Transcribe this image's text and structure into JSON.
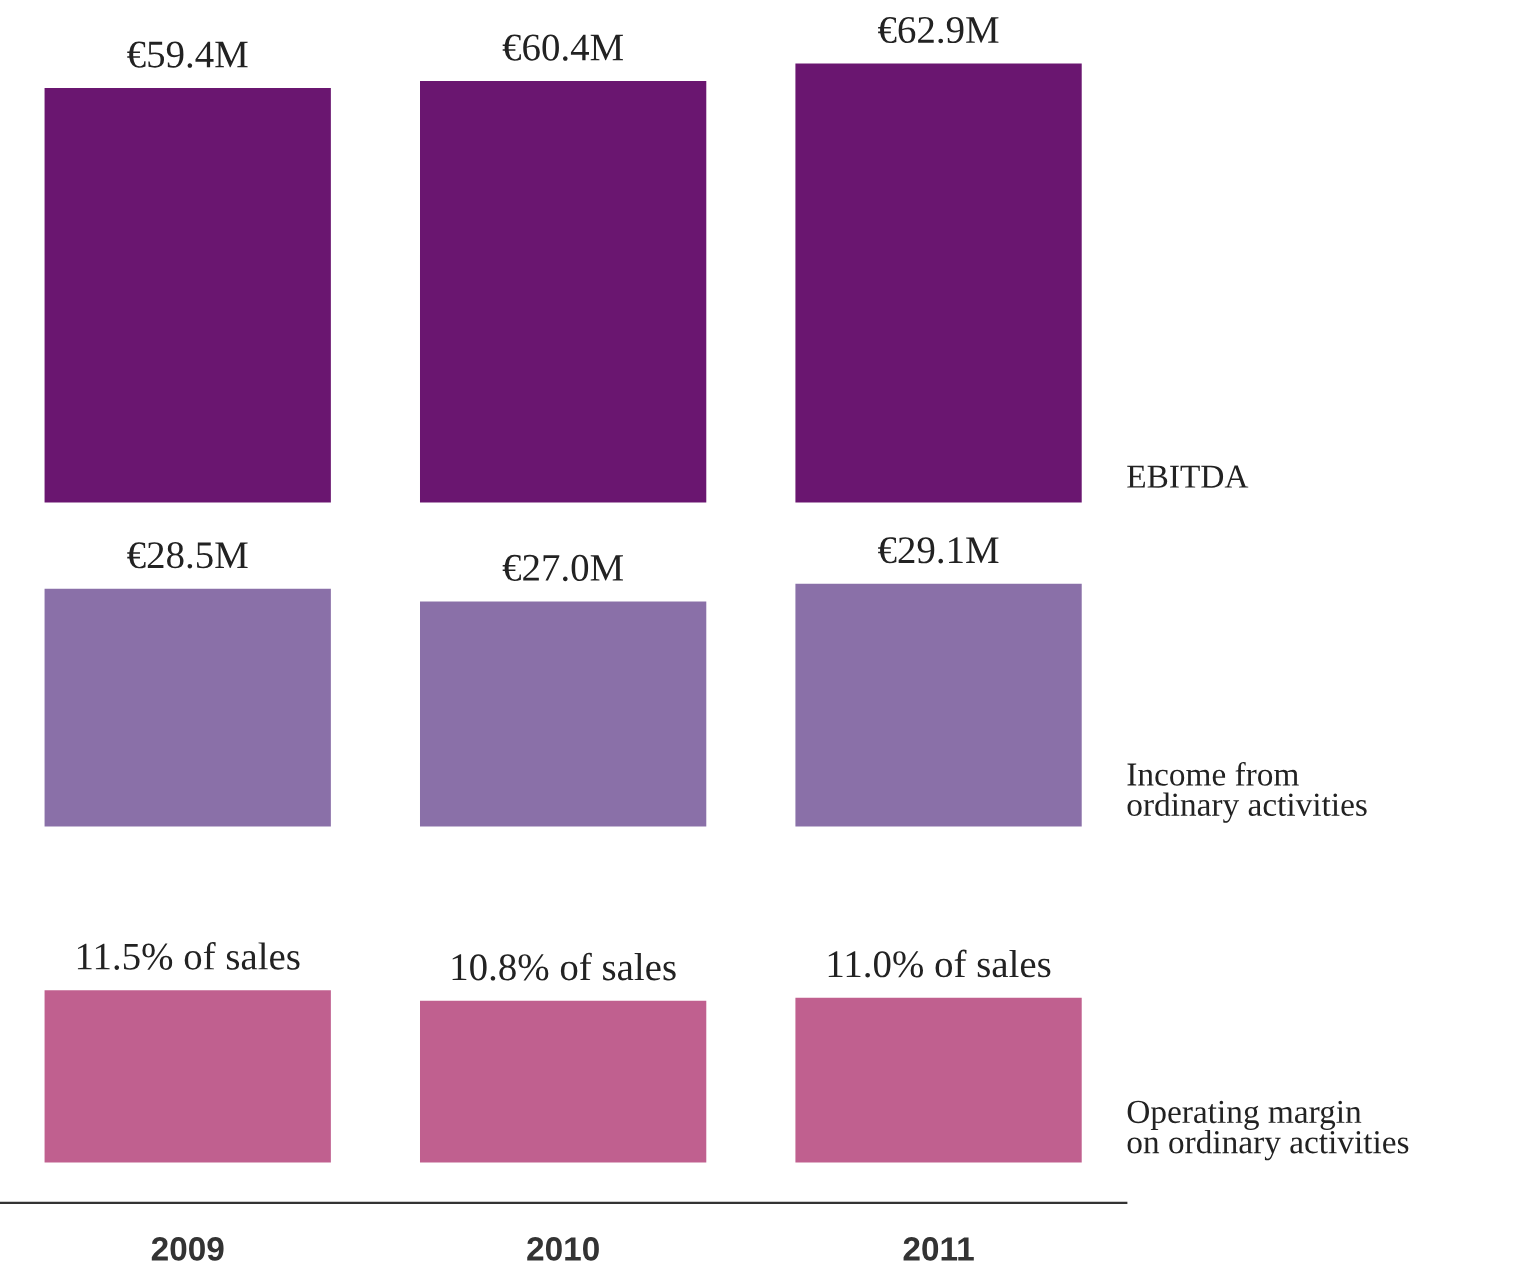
{
  "chart_data": [
    {
      "type": "bar",
      "categories": [
        "2009",
        "2010",
        "2011"
      ],
      "tick_labels": false,
      "series": [
        {
          "name": "EBITDA",
          "color": "#6a1670",
          "values": [
            59.4,
            60.4,
            62.9
          ],
          "value_labels": [
            "€59.4M",
            "€60.4M",
            "€62.9M"
          ]
        }
      ]
    },
    {
      "type": "bar",
      "categories": [
        "2009",
        "2010",
        "2011"
      ],
      "tick_labels": false,
      "series": [
        {
          "name": "Income from\nordinary activities",
          "color": "#8a70a8",
          "values": [
            28.5,
            27.0,
            29.1
          ],
          "value_labels": [
            "€28.5M",
            "€27.0M",
            "€29.1M"
          ]
        }
      ]
    },
    {
      "type": "bar",
      "categories": [
        "2009",
        "2010",
        "2011"
      ],
      "tick_labels": "x",
      "series": [
        {
          "name": "Operating margin\non ordinary activities",
          "color": "#c0608f",
          "values": [
            11.5,
            10.8,
            11.0
          ],
          "value_labels": [
            "11.5% of sales",
            "10.8% of sales",
            "11.0% of sales"
          ]
        }
      ]
    }
  ]
}
